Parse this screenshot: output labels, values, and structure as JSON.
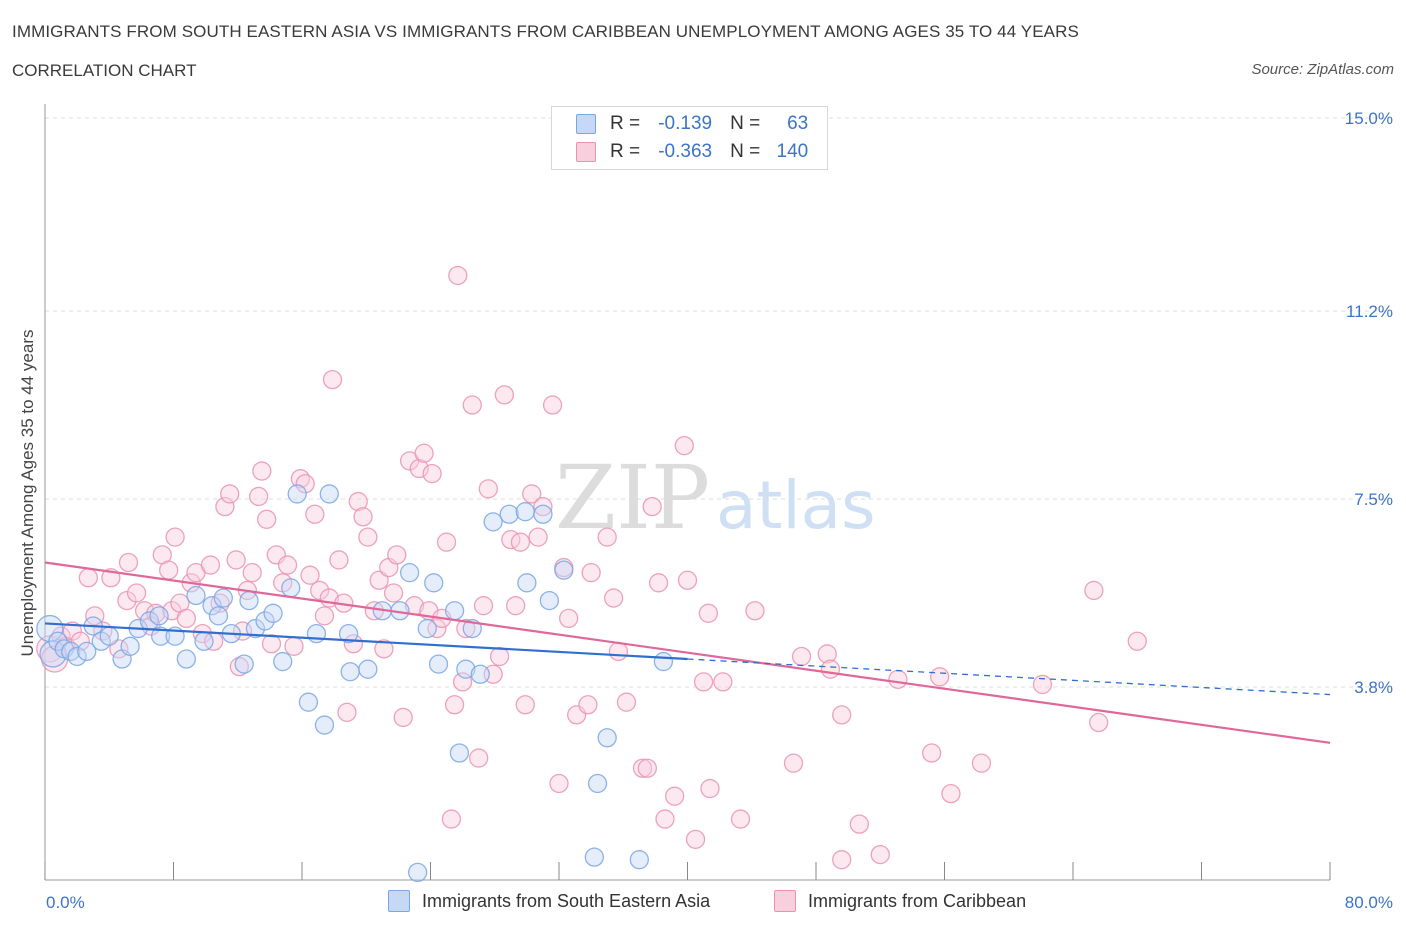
{
  "header": {
    "title": "IMMIGRANTS FROM SOUTH EASTERN ASIA VS IMMIGRANTS FROM CARIBBEAN UNEMPLOYMENT AMONG AGES 35 TO 44 YEARS",
    "subtitle": "CORRELATION CHART",
    "source": "Source: ZipAtlas.com"
  },
  "legend_top": {
    "rows": [
      {
        "r_label": "R =",
        "r_value": "-0.139",
        "n_label": "N =",
        "n_value": "63"
      },
      {
        "r_label": "R =",
        "r_value": "-0.363",
        "n_label": "N =",
        "n_value": "140"
      }
    ]
  },
  "legend_bottom": {
    "items": [
      "Immigrants from South Eastern Asia",
      "Immigrants from Caribbean"
    ]
  },
  "colors": {
    "series_a_stroke": "#7aa6e6",
    "series_a_fill": "#c5d8f6",
    "series_a_line": "#2f6fcf",
    "series_b_stroke": "#eb92b2",
    "series_b_fill": "#f8cfdd",
    "series_b_line": "#e0679a",
    "axis_label": "#3b74c9",
    "grid": "#dddddd"
  },
  "chart_data": {
    "type": "scatter",
    "title": "IMMIGRANTS FROM SOUTH EASTERN ASIA VS IMMIGRANTS FROM CARIBBEAN UNEMPLOYMENT AMONG AGES 35 TO 44 YEARS",
    "xlabel": "",
    "ylabel": "Unemployment Among Ages 35 to 44 years",
    "xlim": [
      0,
      80
    ],
    "ylim": [
      0,
      15
    ],
    "x_tick_labels": [
      {
        "value": 0,
        "label": "0.0%"
      },
      {
        "value": 80,
        "label": "80.0%"
      }
    ],
    "y_tick_labels": [
      {
        "value": 3.8,
        "label": "3.8%"
      },
      {
        "value": 7.5,
        "label": "7.5%"
      },
      {
        "value": 11.2,
        "label": "11.2%"
      },
      {
        "value": 15.0,
        "label": "15.0%"
      }
    ],
    "watermark": {
      "zip": "ZIP",
      "atlas": "atlas"
    },
    "series": [
      {
        "name": "Immigrants from South Eastern Asia",
        "r": -0.139,
        "n": 63,
        "trend": {
          "x": [
            0,
            40
          ],
          "y": [
            5.05,
            4.35
          ]
        },
        "trend_dashed": {
          "x": [
            40,
            80
          ],
          "y": [
            4.35,
            3.65
          ]
        },
        "points": [
          {
            "x": 0.3,
            "y": 4.95,
            "s": 13
          },
          {
            "x": 0.5,
            "y": 4.45,
            "s": 13
          },
          {
            "x": 0.8,
            "y": 4.7
          },
          {
            "x": 1.2,
            "y": 4.55
          },
          {
            "x": 1.6,
            "y": 4.5
          },
          {
            "x": 2.0,
            "y": 4.4
          },
          {
            "x": 2.6,
            "y": 4.5
          },
          {
            "x": 3.0,
            "y": 5.0
          },
          {
            "x": 3.5,
            "y": 4.7
          },
          {
            "x": 4.0,
            "y": 4.8
          },
          {
            "x": 4.8,
            "y": 4.35
          },
          {
            "x": 5.3,
            "y": 4.6
          },
          {
            "x": 5.8,
            "y": 4.95
          },
          {
            "x": 6.5,
            "y": 5.1
          },
          {
            "x": 7.1,
            "y": 5.2
          },
          {
            "x": 7.2,
            "y": 4.8
          },
          {
            "x": 8.1,
            "y": 4.8
          },
          {
            "x": 8.8,
            "y": 4.35
          },
          {
            "x": 9.4,
            "y": 5.6
          },
          {
            "x": 9.9,
            "y": 4.7
          },
          {
            "x": 10.4,
            "y": 5.4
          },
          {
            "x": 10.8,
            "y": 5.2
          },
          {
            "x": 11.1,
            "y": 5.55
          },
          {
            "x": 11.6,
            "y": 4.85
          },
          {
            "x": 12.4,
            "y": 4.25
          },
          {
            "x": 12.7,
            "y": 5.5
          },
          {
            "x": 13.1,
            "y": 4.95
          },
          {
            "x": 13.7,
            "y": 5.1
          },
          {
            "x": 14.2,
            "y": 5.25
          },
          {
            "x": 14.8,
            "y": 4.3
          },
          {
            "x": 15.3,
            "y": 5.75
          },
          {
            "x": 15.7,
            "y": 7.6
          },
          {
            "x": 16.4,
            "y": 3.5
          },
          {
            "x": 16.9,
            "y": 4.85
          },
          {
            "x": 17.4,
            "y": 3.05
          },
          {
            "x": 17.7,
            "y": 7.6
          },
          {
            "x": 18.9,
            "y": 4.85
          },
          {
            "x": 19.0,
            "y": 4.1
          },
          {
            "x": 20.1,
            "y": 4.15
          },
          {
            "x": 21.0,
            "y": 5.3
          },
          {
            "x": 22.1,
            "y": 5.3
          },
          {
            "x": 22.7,
            "y": 6.05
          },
          {
            "x": 23.2,
            "y": 0.15
          },
          {
            "x": 23.8,
            "y": 4.95
          },
          {
            "x": 24.2,
            "y": 5.85
          },
          {
            "x": 24.5,
            "y": 4.25
          },
          {
            "x": 25.5,
            "y": 5.3
          },
          {
            "x": 25.8,
            "y": 2.5
          },
          {
            "x": 26.2,
            "y": 4.15
          },
          {
            "x": 26.6,
            "y": 4.95
          },
          {
            "x": 27.1,
            "y": 4.05
          },
          {
            "x": 27.9,
            "y": 7.05
          },
          {
            "x": 28.9,
            "y": 7.2
          },
          {
            "x": 29.9,
            "y": 7.25
          },
          {
            "x": 30.0,
            "y": 5.85
          },
          {
            "x": 31.0,
            "y": 7.2
          },
          {
            "x": 31.4,
            "y": 5.5
          },
          {
            "x": 32.3,
            "y": 6.1
          },
          {
            "x": 34.4,
            "y": 1.9
          },
          {
            "x": 34.2,
            "y": 0.45
          },
          {
            "x": 35.0,
            "y": 2.8
          },
          {
            "x": 37.0,
            "y": 0.4
          },
          {
            "x": 38.5,
            "y": 4.3
          }
        ]
      },
      {
        "name": "Immigrants from Caribbean",
        "r": -0.363,
        "n": 140,
        "trend": {
          "x": [
            0,
            80
          ],
          "y": [
            6.25,
            2.7
          ]
        },
        "points": [
          {
            "x": 0.3,
            "y": 4.55,
            "s": 13
          },
          {
            "x": 0.6,
            "y": 4.35,
            "s": 13
          },
          {
            "x": 1.0,
            "y": 4.8
          },
          {
            "x": 1.3,
            "y": 4.6
          },
          {
            "x": 1.7,
            "y": 4.9
          },
          {
            "x": 2.2,
            "y": 4.7
          },
          {
            "x": 2.7,
            "y": 5.95
          },
          {
            "x": 3.1,
            "y": 5.2
          },
          {
            "x": 3.6,
            "y": 4.9
          },
          {
            "x": 4.1,
            "y": 5.95
          },
          {
            "x": 4.6,
            "y": 4.55
          },
          {
            "x": 5.1,
            "y": 5.5
          },
          {
            "x": 5.2,
            "y": 6.25
          },
          {
            "x": 5.7,
            "y": 5.65
          },
          {
            "x": 6.2,
            "y": 5.3
          },
          {
            "x": 6.6,
            "y": 5.0
          },
          {
            "x": 6.9,
            "y": 5.25
          },
          {
            "x": 7.3,
            "y": 6.4
          },
          {
            "x": 7.7,
            "y": 6.1
          },
          {
            "x": 7.9,
            "y": 5.3
          },
          {
            "x": 8.1,
            "y": 6.75
          },
          {
            "x": 8.4,
            "y": 5.45
          },
          {
            "x": 8.8,
            "y": 5.15
          },
          {
            "x": 9.1,
            "y": 5.85
          },
          {
            "x": 9.4,
            "y": 6.05
          },
          {
            "x": 9.8,
            "y": 4.85
          },
          {
            "x": 10.3,
            "y": 6.2
          },
          {
            "x": 10.5,
            "y": 4.7
          },
          {
            "x": 10.9,
            "y": 5.45
          },
          {
            "x": 11.2,
            "y": 7.35
          },
          {
            "x": 11.5,
            "y": 7.6
          },
          {
            "x": 11.9,
            "y": 6.3
          },
          {
            "x": 12.1,
            "y": 4.2
          },
          {
            "x": 12.3,
            "y": 4.9
          },
          {
            "x": 12.6,
            "y": 5.7
          },
          {
            "x": 12.9,
            "y": 6.05
          },
          {
            "x": 13.3,
            "y": 7.55
          },
          {
            "x": 13.5,
            "y": 8.05
          },
          {
            "x": 13.8,
            "y": 7.1
          },
          {
            "x": 14.1,
            "y": 4.65
          },
          {
            "x": 14.4,
            "y": 6.4
          },
          {
            "x": 14.8,
            "y": 5.85
          },
          {
            "x": 15.1,
            "y": 6.2
          },
          {
            "x": 15.5,
            "y": 4.6
          },
          {
            "x": 15.9,
            "y": 7.9
          },
          {
            "x": 16.2,
            "y": 7.8
          },
          {
            "x": 16.5,
            "y": 6.0
          },
          {
            "x": 16.8,
            "y": 7.2
          },
          {
            "x": 17.1,
            "y": 5.7
          },
          {
            "x": 17.4,
            "y": 5.2
          },
          {
            "x": 17.7,
            "y": 5.55
          },
          {
            "x": 17.9,
            "y": 9.85
          },
          {
            "x": 18.3,
            "y": 6.3
          },
          {
            "x": 18.6,
            "y": 5.45
          },
          {
            "x": 18.8,
            "y": 3.3
          },
          {
            "x": 19.2,
            "y": 4.65
          },
          {
            "x": 19.5,
            "y": 7.45
          },
          {
            "x": 19.8,
            "y": 7.15
          },
          {
            "x": 20.1,
            "y": 6.75
          },
          {
            "x": 20.5,
            "y": 5.3
          },
          {
            "x": 20.8,
            "y": 5.9
          },
          {
            "x": 21.1,
            "y": 4.55
          },
          {
            "x": 21.4,
            "y": 6.15
          },
          {
            "x": 21.7,
            "y": 5.65
          },
          {
            "x": 21.9,
            "y": 6.4
          },
          {
            "x": 22.3,
            "y": 3.2
          },
          {
            "x": 22.7,
            "y": 8.25
          },
          {
            "x": 23.0,
            "y": 5.4
          },
          {
            "x": 23.3,
            "y": 8.1
          },
          {
            "x": 23.6,
            "y": 8.4
          },
          {
            "x": 23.9,
            "y": 5.3
          },
          {
            "x": 24.1,
            "y": 8.0
          },
          {
            "x": 24.4,
            "y": 4.95
          },
          {
            "x": 24.7,
            "y": 5.15
          },
          {
            "x": 25.0,
            "y": 6.65
          },
          {
            "x": 25.3,
            "y": 1.2
          },
          {
            "x": 25.5,
            "y": 3.45
          },
          {
            "x": 25.7,
            "y": 11.9
          },
          {
            "x": 26.0,
            "y": 3.9
          },
          {
            "x": 26.2,
            "y": 4.95
          },
          {
            "x": 26.6,
            "y": 9.35
          },
          {
            "x": 27.0,
            "y": 2.4
          },
          {
            "x": 27.3,
            "y": 5.4
          },
          {
            "x": 27.6,
            "y": 7.7
          },
          {
            "x": 27.9,
            "y": 4.05
          },
          {
            "x": 28.3,
            "y": 4.4
          },
          {
            "x": 28.6,
            "y": 9.55
          },
          {
            "x": 29.0,
            "y": 6.7
          },
          {
            "x": 29.3,
            "y": 5.4
          },
          {
            "x": 29.6,
            "y": 6.65
          },
          {
            "x": 29.9,
            "y": 3.45
          },
          {
            "x": 30.3,
            "y": 7.6
          },
          {
            "x": 30.7,
            "y": 6.75
          },
          {
            "x": 31.0,
            "y": 7.35
          },
          {
            "x": 31.6,
            "y": 9.35
          },
          {
            "x": 32.0,
            "y": 1.9
          },
          {
            "x": 32.3,
            "y": 6.15
          },
          {
            "x": 32.6,
            "y": 5.15
          },
          {
            "x": 33.1,
            "y": 3.25
          },
          {
            "x": 33.8,
            "y": 3.45
          },
          {
            "x": 34.0,
            "y": 6.05
          },
          {
            "x": 35.0,
            "y": 6.75
          },
          {
            "x": 35.4,
            "y": 5.55
          },
          {
            "x": 35.7,
            "y": 4.5
          },
          {
            "x": 36.2,
            "y": 3.5
          },
          {
            "x": 37.2,
            "y": 2.2
          },
          {
            "x": 37.5,
            "y": 2.2
          },
          {
            "x": 37.8,
            "y": 7.35
          },
          {
            "x": 38.2,
            "y": 5.85
          },
          {
            "x": 38.6,
            "y": 1.2
          },
          {
            "x": 39.2,
            "y": 1.65
          },
          {
            "x": 39.8,
            "y": 8.55
          },
          {
            "x": 40.0,
            "y": 5.9
          },
          {
            "x": 40.5,
            "y": 0.8
          },
          {
            "x": 41.0,
            "y": 3.9
          },
          {
            "x": 41.4,
            "y": 1.8
          },
          {
            "x": 41.3,
            "y": 5.25
          },
          {
            "x": 42.2,
            "y": 3.9
          },
          {
            "x": 43.3,
            "y": 1.2
          },
          {
            "x": 44.2,
            "y": 5.3
          },
          {
            "x": 46.6,
            "y": 2.3
          },
          {
            "x": 47.1,
            "y": 4.4
          },
          {
            "x": 48.7,
            "y": 4.45
          },
          {
            "x": 48.9,
            "y": 4.15
          },
          {
            "x": 49.6,
            "y": 3.25
          },
          {
            "x": 49.6,
            "y": 0.4
          },
          {
            "x": 50.7,
            "y": 1.1
          },
          {
            "x": 52.0,
            "y": 0.5
          },
          {
            "x": 53.1,
            "y": 3.95
          },
          {
            "x": 55.2,
            "y": 2.5
          },
          {
            "x": 55.7,
            "y": 4.0
          },
          {
            "x": 56.4,
            "y": 1.7
          },
          {
            "x": 58.3,
            "y": 2.3
          },
          {
            "x": 62.1,
            "y": 3.85
          },
          {
            "x": 65.3,
            "y": 5.7
          },
          {
            "x": 65.6,
            "y": 3.1
          },
          {
            "x": 68.0,
            "y": 4.7
          }
        ]
      }
    ]
  }
}
